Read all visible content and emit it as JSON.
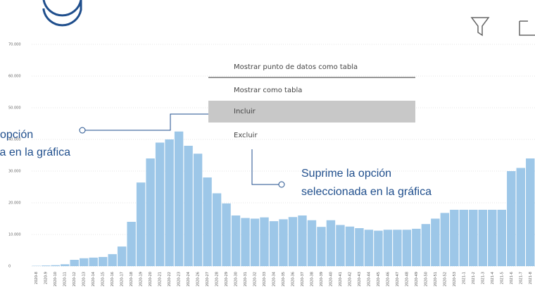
{
  "chart_data": {
    "type": "bar",
    "categories": [
      "2020-8",
      "2020-9",
      "2020-10",
      "2020-11",
      "2020-12",
      "2020-13",
      "2020-14",
      "2020-15",
      "2020-16",
      "2020-17",
      "2020-18",
      "2020-19",
      "2020-20",
      "2020-21",
      "2020-22",
      "2020-23",
      "2020-24",
      "2020-26",
      "2020-27",
      "2020-28",
      "2020-29",
      "2020-30",
      "2020-31",
      "2020-32",
      "2020-33",
      "2020-34",
      "2020-35",
      "2020-36",
      "2020-37",
      "2020-38",
      "2020-39",
      "2020-40",
      "2020-41",
      "2020-42",
      "2020-43",
      "2020-44",
      "2020-45",
      "2020-46",
      "2020-47",
      "2020-48",
      "2020-49",
      "2020-50",
      "2020-51",
      "2020-52",
      "2020-53",
      "2021-1",
      "2021-2",
      "2021-3",
      "2021-4",
      "2021-5",
      "2021-6",
      "2021-7",
      "2021-8"
    ],
    "values": [
      100,
      200,
      300,
      600,
      2000,
      2500,
      2700,
      2900,
      3800,
      6200,
      14000,
      26400,
      34000,
      39000,
      40000,
      42500,
      38000,
      35500,
      28000,
      23000,
      19800,
      16000,
      15200,
      15000,
      15400,
      14200,
      14800,
      15500,
      16000,
      14500,
      12400,
      14500,
      13000,
      12500,
      12000,
      11500,
      11200,
      11500,
      11500,
      11500,
      11800,
      13300,
      15000,
      16800,
      17800,
      17800,
      17800,
      17800,
      17800,
      17800,
      30000,
      31000,
      34000
    ],
    "color": "#9dc7e8",
    "ylim": [
      0,
      70000
    ],
    "yticks": [
      0,
      {
        "value": 10000,
        "label": "10.000"
      },
      {
        "value": 20000,
        "label": "20.000"
      },
      {
        "value": 30000,
        "label": "30.000"
      },
      {
        "value": 40000,
        "label": "40.000"
      },
      {
        "value": 50000,
        "label": "50.000"
      },
      {
        "value": 60000,
        "label": "60.000"
      },
      {
        "value": 70000,
        "label": "70.000"
      }
    ],
    "grid": true
  },
  "menu": {
    "items": [
      "Mostrar punto de datos como tabla",
      "Mostrar como tabla",
      "Incluir",
      "Excluir"
    ]
  },
  "annotations": {
    "left": [
      "opción",
      "la en la gráfica"
    ],
    "right": [
      "Suprime la opción",
      "seleccionada en la gráfica"
    ]
  }
}
